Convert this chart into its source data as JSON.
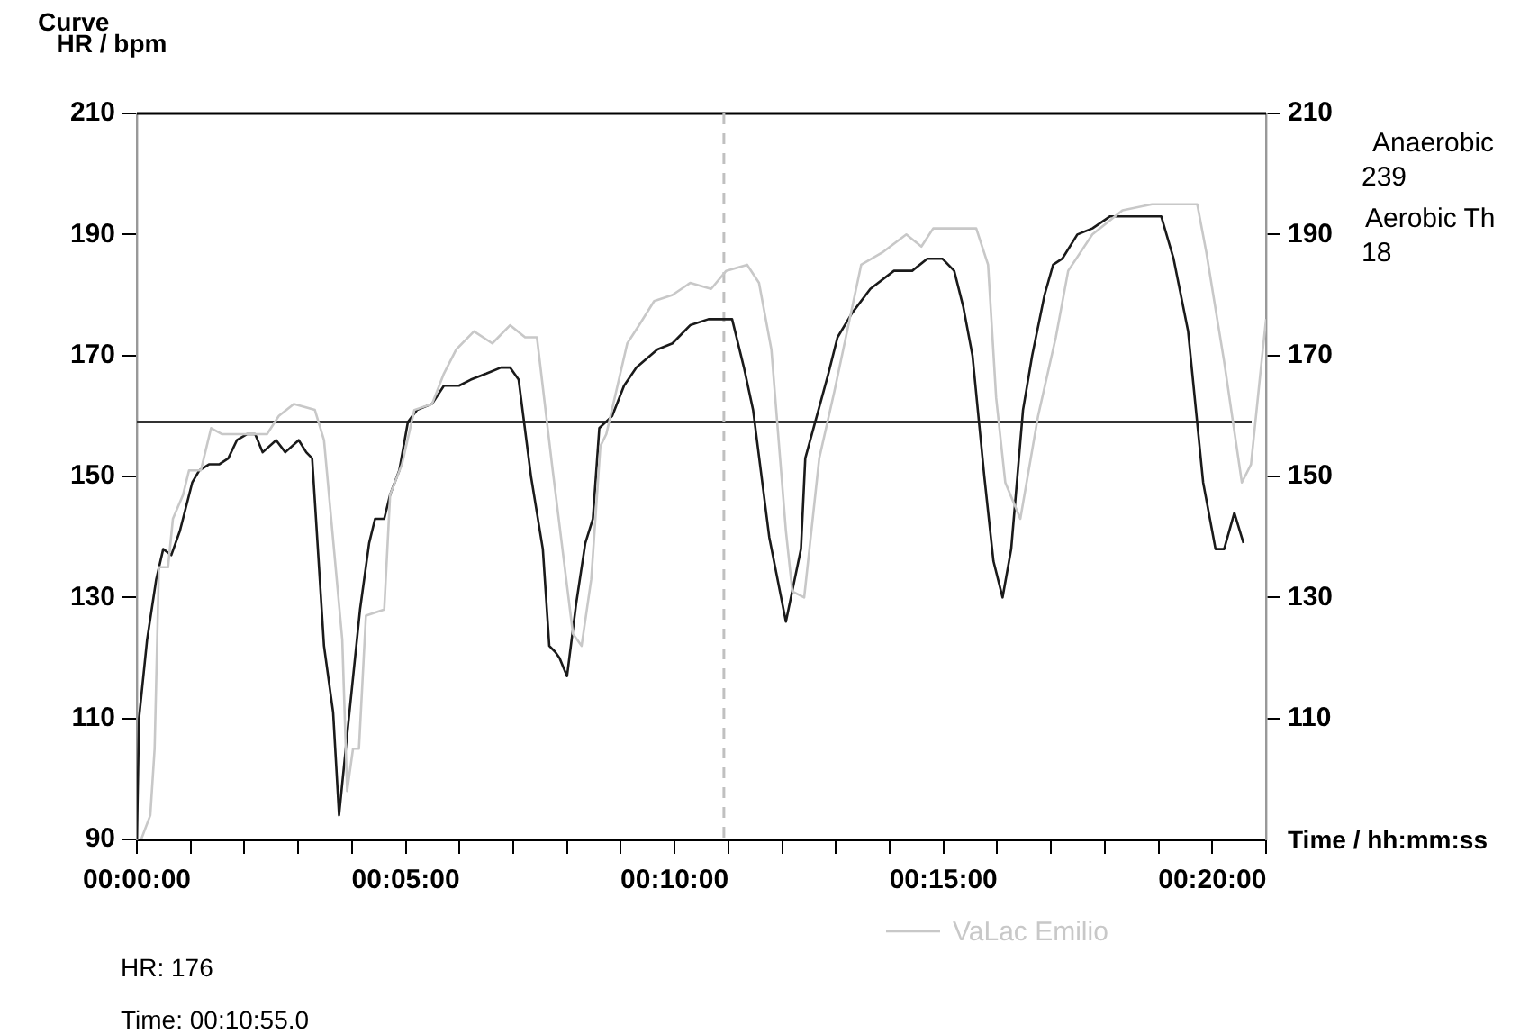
{
  "chart_data": {
    "type": "line",
    "title": "Curve",
    "ylabel": "HR / bpm",
    "xlabel": "Time / hh:mm:ss",
    "xlim": [
      0,
      21
    ],
    "xticks": [
      {
        "value": 0,
        "label": "00:00:00"
      },
      {
        "value": 1,
        "label": null
      },
      {
        "value": 2,
        "label": null
      },
      {
        "value": 3,
        "label": null
      },
      {
        "value": 4,
        "label": null
      },
      {
        "value": 5,
        "label": "00:05:00"
      },
      {
        "value": 6,
        "label": null
      },
      {
        "value": 7,
        "label": null
      },
      {
        "value": 8,
        "label": null
      },
      {
        "value": 9,
        "label": null
      },
      {
        "value": 10,
        "label": "00:10:00"
      },
      {
        "value": 11,
        "label": null
      },
      {
        "value": 12,
        "label": null
      },
      {
        "value": 13,
        "label": null
      },
      {
        "value": 14,
        "label": null
      },
      {
        "value": 15,
        "label": "00:15:00"
      },
      {
        "value": 16,
        "label": null
      },
      {
        "value": 17,
        "label": null
      },
      {
        "value": 18,
        "label": null
      },
      {
        "value": 19,
        "label": null
      },
      {
        "value": 20,
        "label": "00:20:00"
      },
      {
        "value": 21,
        "label": null
      }
    ],
    "ylim": [
      90,
      210
    ],
    "yticks": [
      90,
      110,
      130,
      150,
      170,
      190,
      210
    ],
    "y2lim": [
      90,
      210
    ],
    "y2ticks": [
      110,
      130,
      150,
      170,
      190,
      210
    ],
    "series": [
      {
        "name": "VaLac Emilio",
        "color": "#c8c8c8",
        "x": [
          0.08,
          0.25,
          0.33,
          0.41,
          0.58,
          0.67,
          0.86,
          0.97,
          1.19,
          1.38,
          1.58,
          1.81,
          2.42,
          2.64,
          2.92,
          3.31,
          3.48,
          3.82,
          3.91,
          4.02,
          4.13,
          4.26,
          4.6,
          4.71,
          4.93,
          5.16,
          5.49,
          5.71,
          5.94,
          6.27,
          6.61,
          6.94,
          7.22,
          7.44,
          7.72,
          8.11,
          8.27,
          8.45,
          8.62,
          8.73,
          9.12,
          9.34,
          9.62,
          9.96,
          10.29,
          10.68,
          10.96,
          11.35,
          11.57,
          11.8,
          12.07,
          12.19,
          12.41,
          12.69,
          12.97,
          13.47,
          13.86,
          14.31,
          14.59,
          14.81,
          15.32,
          15.61,
          15.83,
          15.98,
          16.15,
          16.43,
          16.76,
          17.09,
          17.32,
          17.77,
          18.33,
          18.88,
          19.72,
          19.89,
          20.22,
          20.55,
          20.72,
          20.94,
          21.0
        ],
        "values": [
          90,
          94,
          105,
          135,
          135,
          143,
          147,
          151,
          151,
          158,
          157,
          157,
          157,
          160,
          162,
          161,
          156,
          123,
          98,
          105,
          105,
          127,
          128,
          147,
          152,
          161,
          162,
          167,
          171,
          174,
          172,
          175,
          173,
          173,
          152,
          124,
          122,
          133,
          155,
          157,
          172,
          175,
          179,
          180,
          182,
          181,
          184,
          185,
          182,
          171,
          141,
          131,
          130,
          153,
          164,
          185,
          187,
          190,
          188,
          191,
          191,
          191,
          185,
          163,
          149,
          143,
          160,
          173,
          184,
          190,
          194,
          195,
          195,
          187,
          169,
          149,
          152,
          171,
          176
        ]
      },
      {
        "color": "#1a1a1a",
        "x": [
          0,
          0.04,
          0.19,
          0.36,
          0.49,
          0.64,
          0.8,
          1.03,
          1.16,
          1.34,
          1.53,
          1.7,
          1.86,
          2.05,
          2.2,
          2.34,
          2.59,
          2.76,
          3.01,
          3.15,
          3.26,
          3.48,
          3.65,
          3.76,
          3.93,
          4.15,
          4.32,
          4.43,
          4.6,
          4.71,
          4.88,
          5.04,
          5.21,
          5.49,
          5.71,
          5.99,
          6.21,
          6.5,
          6.77,
          6.94,
          7.1,
          7.33,
          7.55,
          7.67,
          7.78,
          7.86,
          8.0,
          8.17,
          8.34,
          8.48,
          8.6,
          8.84,
          9.06,
          9.29,
          9.68,
          9.96,
          10.29,
          10.63,
          11.07,
          11.29,
          11.46,
          11.76,
          12.07,
          12.35,
          12.43,
          12.86,
          13.03,
          13.3,
          13.64,
          14.08,
          14.42,
          14.7,
          14.98,
          15.2,
          15.37,
          15.54,
          15.76,
          15.93,
          16.1,
          16.26,
          16.48,
          16.65,
          16.88,
          17.04,
          17.21,
          17.49,
          17.77,
          18.1,
          18.33,
          18.66,
          18.88,
          19.05,
          19.28,
          19.55,
          19.83,
          20.06,
          20.22,
          20.41,
          20.58
        ],
        "values": [
          90,
          110,
          123,
          133,
          138,
          137,
          141,
          149,
          151,
          152,
          152,
          153,
          156,
          157,
          157,
          154,
          156,
          154,
          156,
          154,
          153,
          122,
          111,
          94,
          109,
          128,
          139,
          143,
          143,
          147,
          151,
          159,
          161,
          162,
          165,
          165,
          166,
          167,
          168,
          168,
          166,
          150,
          138,
          122,
          121,
          120,
          117,
          129,
          139,
          143,
          158,
          160,
          165,
          168,
          171,
          172,
          175,
          176,
          176,
          168,
          161,
          140,
          126,
          138,
          153,
          167,
          173,
          177,
          181,
          184,
          184,
          186,
          186,
          184,
          178,
          170,
          150,
          136,
          130,
          138,
          161,
          170,
          180,
          185,
          186,
          190,
          191,
          193,
          193,
          193,
          193,
          193,
          186,
          174,
          149,
          138,
          138,
          144,
          139
        ]
      }
    ],
    "ref_lines": [
      {
        "axis": "y",
        "value": 159,
        "color": "#333333",
        "line_style": "solid"
      },
      {
        "axis": "x",
        "value": 10.917,
        "color": "#c0c0c0",
        "line_style": "dashed"
      }
    ],
    "annotations": [
      "Anaerobic",
      "239",
      "Aerobic Th",
      "18",
      "HR: 176",
      "Time: 00:10:55.0"
    ],
    "grid": false,
    "legend": "bottom",
    "marker": "none",
    "line_style": "solid"
  }
}
